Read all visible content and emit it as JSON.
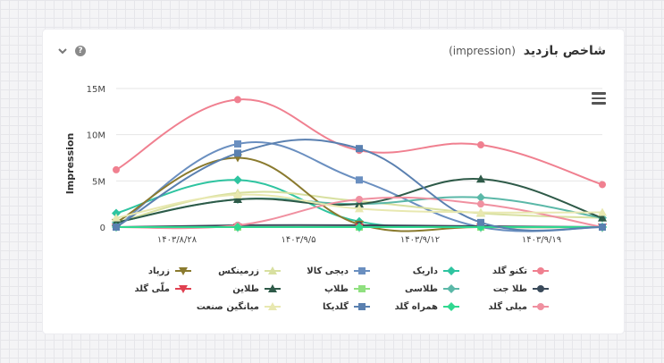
{
  "header": {
    "title": "شاخص بازدید",
    "subtitle": "(impression)",
    "collapse_icon": "chevron-down-icon",
    "help_icon": "question-circle-icon",
    "help_glyph": "?",
    "menu_icon": "hamburger-menu-icon"
  },
  "chart_data": {
    "type": "line",
    "ylabel": "Impression",
    "ylim": [
      0,
      15000000
    ],
    "yticks": [
      0,
      5000000,
      10000000,
      15000000
    ],
    "yticklabels": [
      "0",
      "5M",
      "10M",
      "15M"
    ],
    "xticklabels": [
      "۱۴۰۳/۸/۲۸",
      "۱۴۰۳/۹/۵",
      "۱۴۰۳/۹/۱۲",
      "۱۴۰۳/۹/۱۹"
    ],
    "x": [
      0,
      1,
      2,
      3,
      4
    ],
    "grid": true,
    "series": [
      {
        "name": "تکنو گلد",
        "color": "#f08090",
        "marker": "circle",
        "values": [
          6200000,
          13800000,
          8300000,
          8900000,
          4600000
        ]
      },
      {
        "name": "داریک",
        "color": "#2ec4a0",
        "marker": "diamond",
        "values": [
          1500000,
          5100000,
          600000,
          100000,
          0
        ]
      },
      {
        "name": "دیجی کالا",
        "color": "#6a8fc0",
        "marker": "square",
        "values": [
          0,
          9000000,
          5100000,
          0,
          0
        ]
      },
      {
        "name": "زرمینکس",
        "color": "#d8e0a0",
        "marker": "triangle",
        "values": [
          500000,
          3700000,
          2800000,
          1500000,
          1000000
        ]
      },
      {
        "name": "زرپاد",
        "color": "#8a7a2e",
        "marker": "triangle-down",
        "values": [
          500000,
          7500000,
          300000,
          0,
          0
        ]
      },
      {
        "name": "طلا جت",
        "color": "#3a4a5a",
        "marker": "circle",
        "values": [
          0,
          200000,
          200000,
          100000,
          0
        ]
      },
      {
        "name": "طلاسی",
        "color": "#5bb8a8",
        "marker": "diamond",
        "values": [
          500000,
          3000000,
          2500000,
          3200000,
          1000000
        ]
      },
      {
        "name": "طلاپ",
        "color": "#90e080",
        "marker": "square",
        "values": [
          0,
          0,
          0,
          0,
          0
        ]
      },
      {
        "name": "طلاین",
        "color": "#2e5a48",
        "marker": "triangle",
        "values": [
          500000,
          3000000,
          2500000,
          5200000,
          1000000
        ]
      },
      {
        "name": "ملّی گلد",
        "color": "#e04050",
        "marker": "triangle-down",
        "values": [
          0,
          0,
          0,
          0,
          0
        ]
      },
      {
        "name": "میلی گلد",
        "color": "#f090a0",
        "marker": "circle",
        "values": [
          0,
          200000,
          3000000,
          2500000,
          0
        ]
      },
      {
        "name": "همراه گلد",
        "color": "#30d890",
        "marker": "diamond",
        "values": [
          0,
          0,
          0,
          0,
          0
        ]
      },
      {
        "name": "گلدیکا",
        "color": "#5a80b0",
        "marker": "square",
        "values": [
          0,
          8000000,
          8500000,
          500000,
          0
        ]
      },
      {
        "name": "میانگین صنعت",
        "color": "#e8e8b0",
        "marker": "triangle",
        "values": [
          1000000,
          3500000,
          2000000,
          1600000,
          1600000
        ]
      }
    ]
  }
}
